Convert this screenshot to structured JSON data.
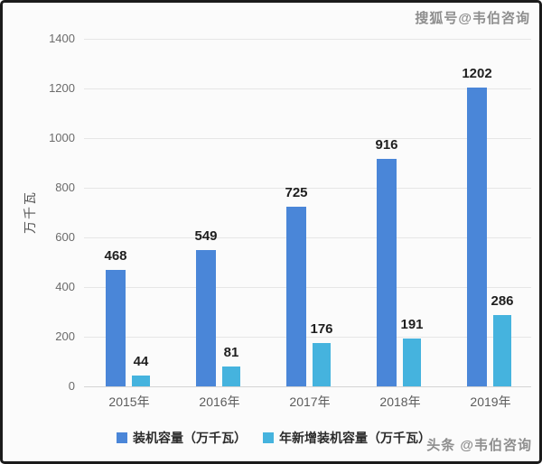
{
  "frame": {
    "watermark_top": "搜狐号@韦伯咨询",
    "watermark_bottom": "头条 @韦伯咨询",
    "border_color": "#1b1b1b",
    "background": "#fbfbfb"
  },
  "chart_data": {
    "type": "bar",
    "categories": [
      "2015年",
      "2016年",
      "2017年",
      "2018年",
      "2019年"
    ],
    "series": [
      {
        "name": "装机容量（万千瓦）",
        "color": "#4a86d8",
        "values": [
          468,
          549,
          725,
          916,
          1202
        ]
      },
      {
        "name": "年新增装机容量（万千瓦）",
        "color": "#45b3de",
        "values": [
          44,
          81,
          176,
          191,
          286
        ]
      }
    ],
    "title": "",
    "xlabel": "",
    "ylabel": "万千瓦",
    "ylim": [
      0,
      1400
    ],
    "yticks": [
      0,
      200,
      400,
      600,
      800,
      1000,
      1200,
      1400
    ],
    "grid": true,
    "bar_value_labels": true,
    "legend_position": "bottom"
  }
}
